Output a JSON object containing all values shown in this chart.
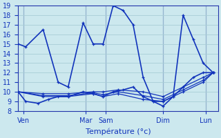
{
  "background_color": "#cce8ee",
  "grid_color": "#a8cdd5",
  "line_color": "#1133bb",
  "xlabel": "Température (°c)",
  "ylim": [
    8,
    19
  ],
  "yticks": [
    8,
    9,
    10,
    11,
    12,
    13,
    14,
    15,
    16,
    17,
    18,
    19
  ],
  "xlim": [
    0,
    40
  ],
  "day_labels": [
    "Ven",
    "Mar",
    "Sam",
    "Dim",
    "Lun"
  ],
  "day_positions": [
    1.0,
    13.5,
    17.5,
    29.0,
    37.5
  ],
  "day_vline_positions": [
    1.0,
    13.5,
    17.5,
    29.0,
    37.5
  ],
  "series": [
    {
      "x": [
        0,
        1.5,
        5,
        8,
        10,
        13,
        15,
        17,
        19,
        21,
        23,
        25,
        27,
        29,
        31,
        33,
        35,
        37,
        39
      ],
      "y": [
        15,
        14.7,
        16.5,
        11,
        10.5,
        17.2,
        15,
        15,
        19,
        18.5,
        17,
        11.5,
        9,
        9,
        9.5,
        18,
        15.5,
        13,
        12
      ],
      "ls": "-",
      "lw": 1.2
    },
    {
      "x": [
        0,
        1.5,
        4,
        6,
        8,
        10,
        13,
        15,
        17,
        19,
        21,
        23,
        25,
        27,
        29,
        31,
        33,
        35,
        37,
        39
      ],
      "y": [
        10,
        9,
        8.8,
        9.2,
        9.5,
        9.5,
        10,
        9.8,
        9.5,
        10,
        10.2,
        10.5,
        9.5,
        9,
        8.5,
        9.5,
        10.5,
        11.5,
        12,
        12
      ],
      "ls": "-",
      "lw": 1.2
    },
    {
      "x": [
        0,
        5,
        10,
        15,
        17,
        20,
        25,
        29,
        33,
        37,
        39
      ],
      "y": [
        10,
        9.8,
        9.8,
        10,
        10,
        10.2,
        10,
        9.5,
        10.5,
        11.5,
        12
      ],
      "ls": "-",
      "lw": 0.9
    },
    {
      "x": [
        0,
        5,
        10,
        15,
        17,
        20,
        25,
        29,
        33,
        37,
        39
      ],
      "y": [
        10,
        9.5,
        9.5,
        9.8,
        9.5,
        9.8,
        9.2,
        9.0,
        10,
        11,
        12
      ],
      "ls": "-",
      "lw": 0.9
    },
    {
      "x": [
        0,
        5,
        10,
        15,
        17,
        20,
        25,
        29,
        33,
        37,
        39
      ],
      "y": [
        10,
        9.6,
        9.6,
        9.9,
        9.7,
        10.0,
        9.6,
        9.2,
        10.2,
        11.2,
        12
      ],
      "ls": "-",
      "lw": 0.9
    }
  ]
}
